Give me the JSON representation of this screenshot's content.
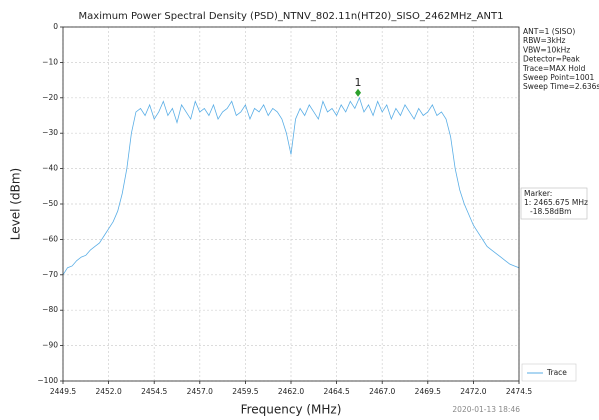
{
  "chart_data": {
    "type": "line",
    "title": "Maximum Power Spectral Density (PSD)_NTNV_802.11n(HT20)_SISO_2462MHz_ANT1",
    "x_label": "Frequency (MHz)",
    "y_label": "Level (dBm)",
    "timestamp": "2020-01-13 18:46",
    "info": [
      "ANT=1 (SISO)",
      "RBW=3kHz",
      "VBW=10kHz",
      "Detector=Peak",
      "Trace=MAX Hold",
      "Sweep Point=1001",
      "Sweep Time=2.636s"
    ],
    "marker_box": [
      "Marker:",
      "1: 2465.675 MHz",
      "-18.58dBm"
    ],
    "marker": {
      "label": "1",
      "x": 2465.675,
      "y": -18.58,
      "color": "#2ca02c"
    },
    "xlim": [
      2449.5,
      2474.5
    ],
    "ylim": [
      -100,
      0
    ],
    "xticks": [
      2449.5,
      {
        "value": 2452,
        "label": "2452.0"
      },
      2454.5,
      {
        "value": 2457,
        "label": "2457.0"
      },
      2459.5,
      {
        "value": 2462,
        "label": "2462.0"
      },
      2464.5,
      {
        "value": 2467,
        "label": "2467.0"
      },
      2469.5,
      {
        "value": 2472,
        "label": "2472.0"
      },
      2474.5
    ],
    "yticks": [
      0,
      {
        "value": -10,
        "label": "−10"
      },
      {
        "value": -20,
        "label": "−20"
      },
      {
        "value": -30,
        "label": "−30"
      },
      {
        "value": -40,
        "label": "−40"
      },
      {
        "value": -50,
        "label": "−50"
      },
      {
        "value": -60,
        "label": "−60"
      },
      {
        "value": -70,
        "label": "−70"
      },
      {
        "value": -80,
        "label": "−80"
      },
      {
        "value": -90,
        "label": "−90"
      },
      {
        "value": -100,
        "label": "−100"
      }
    ],
    "grid": true,
    "legend": "lower right",
    "x": [
      2449.5,
      2449.75,
      2450,
      2450.25,
      2450.5,
      2450.75,
      2451,
      2451.25,
      2451.5,
      2451.75,
      2452,
      2452.25,
      2452.5,
      2452.75,
      2453,
      2453.25,
      2453.5,
      2453.75,
      2454,
      2454.25,
      2454.5,
      2454.75,
      2455,
      2455.25,
      2455.5,
      2455.75,
      2456,
      2456.25,
      2456.5,
      2456.75,
      2457,
      2457.25,
      2457.5,
      2457.75,
      2458,
      2458.25,
      2458.5,
      2458.75,
      2459,
      2459.25,
      2459.5,
      2459.75,
      2460,
      2460.25,
      2460.5,
      2460.75,
      2461,
      2461.25,
      2461.5,
      2461.75,
      2462,
      2462.25,
      2462.5,
      2462.75,
      2463,
      2463.25,
      2463.5,
      2463.75,
      2464,
      2464.25,
      2464.5,
      2464.75,
      2465,
      2465.25,
      2465.5,
      2465.75,
      2466,
      2466.25,
      2466.5,
      2466.75,
      2467,
      2467.25,
      2467.5,
      2467.75,
      2468,
      2468.25,
      2468.5,
      2468.75,
      2469,
      2469.25,
      2469.5,
      2469.75,
      2470,
      2470.25,
      2470.5,
      2470.75,
      2471,
      2471.25,
      2471.5,
      2471.75,
      2472,
      2472.25,
      2472.5,
      2472.75,
      2473,
      2473.25,
      2473.5,
      2473.75,
      2474,
      2474.25,
      2474.5
    ],
    "series": [
      {
        "name": "Trace",
        "color": "#5aaee6",
        "values": [
          -70,
          -68,
          -67.5,
          -66,
          -65,
          -64.5,
          -63,
          -62,
          -61,
          -59,
          -57,
          -55,
          -52,
          -47,
          -40,
          -30,
          -24,
          -23,
          -25,
          -22,
          -26,
          -24,
          -21,
          -25,
          -23,
          -27,
          -22,
          -24,
          -26,
          -21,
          -24,
          -23,
          -25,
          -22,
          -26,
          -24,
          -23,
          -21,
          -25,
          -24,
          -22,
          -26,
          -23,
          -24,
          -22,
          -25,
          -23,
          -24,
          -26,
          -30,
          -36,
          -26,
          -23,
          -25,
          -22,
          -24,
          -26,
          -21,
          -24,
          -23,
          -25,
          -22,
          -24,
          -21,
          -23,
          -20,
          -24,
          -22,
          -25,
          -21,
          -24,
          -22,
          -26,
          -23,
          -25,
          -22,
          -24,
          -26,
          -23,
          -25,
          -24,
          -22,
          -25,
          -24,
          -26,
          -31,
          -40,
          -46,
          -50,
          -53,
          -56,
          -58,
          -60,
          -62,
          -63,
          -64,
          -65,
          -66,
          -67,
          -67.5,
          -68
        ]
      }
    ]
  }
}
